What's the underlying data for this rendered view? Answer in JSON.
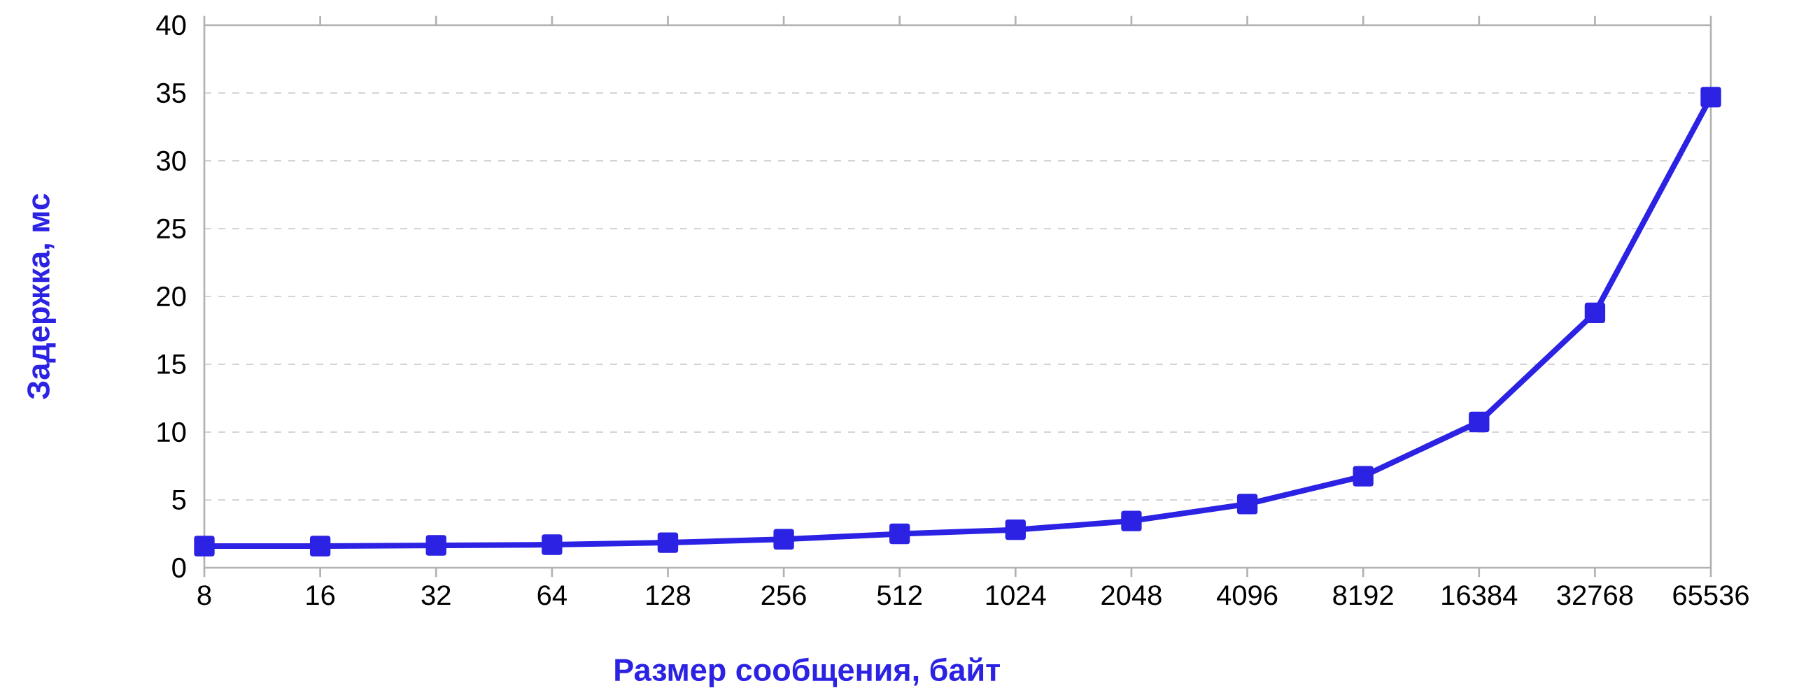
{
  "chart_data": {
    "type": "line",
    "xlabel": "Размер сообщения, байт",
    "ylabel": "Задержка, мс",
    "categories": [
      "8",
      "16",
      "32",
      "64",
      "128",
      "256",
      "512",
      "1024",
      "2048",
      "4096",
      "8192",
      "16384",
      "32768",
      "65536"
    ],
    "series": [
      {
        "color": "#2b22e3",
        "values": [
          1.6,
          1.6,
          1.65,
          1.7,
          1.85,
          2.1,
          2.5,
          2.8,
          3.45,
          4.7,
          6.75,
          10.75,
          18.8,
          34.7
        ]
      }
    ],
    "ylim": [
      0,
      40
    ],
    "yticks": [
      0,
      5,
      10,
      15,
      20,
      25,
      30,
      35,
      40
    ],
    "grid": "y",
    "marker": "square",
    "line_style": "solid"
  }
}
